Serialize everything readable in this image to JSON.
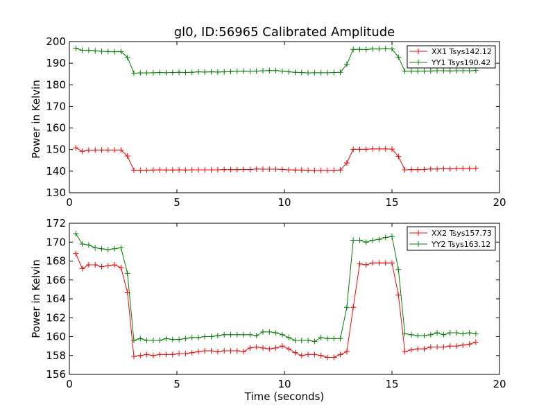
{
  "chart_data": [
    {
      "type": "line",
      "title": "gl0, ID:56965 Calibrated Amplitude",
      "xlabel": "",
      "ylabel": "Power in Kelvin",
      "xlim": [
        0,
        20
      ],
      "ylim": [
        130,
        200
      ],
      "xticks": [
        "0",
        "5",
        "10",
        "15",
        "20"
      ],
      "yticks": [
        "130",
        "140",
        "150",
        "160",
        "170",
        "180",
        "190",
        "200"
      ],
      "legend_position": "top-right",
      "x": [
        0.3,
        0.6,
        0.9,
        1.2,
        1.5,
        1.8,
        2.1,
        2.4,
        2.7,
        3.0,
        3.3,
        3.6,
        3.9,
        4.2,
        4.5,
        4.8,
        5.1,
        5.4,
        5.7,
        6.0,
        6.3,
        6.6,
        6.9,
        7.2,
        7.5,
        7.8,
        8.1,
        8.4,
        8.7,
        9.0,
        9.3,
        9.6,
        9.9,
        10.2,
        10.5,
        10.8,
        11.1,
        11.4,
        11.7,
        12.0,
        12.3,
        12.6,
        12.9,
        13.2,
        13.5,
        13.8,
        14.1,
        14.4,
        14.7,
        15.0,
        15.3,
        15.6,
        15.9,
        16.2,
        16.5,
        16.8,
        17.1,
        17.4,
        17.7,
        18.0,
        18.3,
        18.6,
        18.9
      ],
      "series": [
        {
          "name": "XX1 Tsys142.12",
          "color": "#ff0000",
          "values": [
            150.8,
            149.2,
            149.7,
            149.8,
            149.8,
            149.8,
            149.8,
            149.8,
            147.0,
            140.4,
            140.4,
            140.4,
            140.5,
            140.6,
            140.5,
            140.5,
            140.6,
            140.5,
            140.6,
            140.6,
            140.6,
            140.6,
            140.6,
            140.7,
            140.7,
            140.7,
            140.8,
            140.7,
            141.0,
            140.9,
            140.9,
            140.9,
            140.8,
            140.6,
            140.5,
            140.5,
            140.4,
            140.3,
            140.3,
            140.3,
            140.4,
            140.5,
            143.8,
            150.1,
            150.1,
            150.1,
            150.3,
            150.3,
            150.3,
            150.2,
            146.8,
            140.6,
            140.7,
            140.7,
            140.8,
            141.0,
            141.0,
            141.1,
            141.0,
            141.2,
            141.2,
            141.2,
            141.3
          ]
        },
        {
          "name": "YY1 Tsys190.42",
          "color": "#008000",
          "values": [
            196.9,
            196.0,
            196.0,
            195.7,
            195.5,
            195.4,
            195.3,
            195.4,
            192.7,
            185.4,
            185.5,
            185.5,
            185.6,
            185.7,
            185.6,
            185.7,
            185.8,
            185.7,
            185.8,
            186.0,
            185.9,
            186.0,
            185.9,
            186.0,
            186.1,
            186.2,
            186.3,
            186.2,
            186.3,
            186.5,
            186.6,
            186.6,
            186.3,
            186.0,
            185.8,
            185.7,
            185.5,
            185.6,
            185.6,
            185.6,
            185.7,
            185.8,
            189.5,
            196.4,
            196.4,
            196.3,
            196.6,
            196.6,
            196.7,
            196.6,
            192.8,
            186.3,
            186.3,
            186.3,
            186.3,
            186.4,
            186.5,
            186.5,
            186.4,
            186.5,
            186.5,
            186.5,
            186.6
          ]
        }
      ]
    },
    {
      "type": "line",
      "title": "",
      "xlabel": "Time (seconds)",
      "ylabel": "Power in Kelvin",
      "xlim": [
        0,
        20
      ],
      "ylim": [
        156,
        172
      ],
      "xticks": [
        "0",
        "5",
        "10",
        "15",
        "20"
      ],
      "yticks": [
        "156",
        "158",
        "160",
        "162",
        "164",
        "166",
        "168",
        "170",
        "172"
      ],
      "legend_position": "top-right",
      "x": [
        0.3,
        0.6,
        0.9,
        1.2,
        1.5,
        1.8,
        2.1,
        2.4,
        2.7,
        3.0,
        3.3,
        3.6,
        3.9,
        4.2,
        4.5,
        4.8,
        5.1,
        5.4,
        5.7,
        6.0,
        6.3,
        6.6,
        6.9,
        7.2,
        7.5,
        7.8,
        8.1,
        8.4,
        8.7,
        9.0,
        9.3,
        9.6,
        9.9,
        10.2,
        10.5,
        10.8,
        11.1,
        11.4,
        11.7,
        12.0,
        12.3,
        12.6,
        12.9,
        13.2,
        13.5,
        13.8,
        14.1,
        14.4,
        14.7,
        15.0,
        15.3,
        15.6,
        15.9,
        16.2,
        16.5,
        16.8,
        17.1,
        17.4,
        17.7,
        18.0,
        18.3,
        18.6,
        18.9
      ],
      "series": [
        {
          "name": "XX2 Tsys157.73",
          "color": "#ff0000",
          "values": [
            168.8,
            167.2,
            167.6,
            167.6,
            167.4,
            167.5,
            167.6,
            167.3,
            164.7,
            157.9,
            158.0,
            158.1,
            158.0,
            158.1,
            158.1,
            158.1,
            158.2,
            158.2,
            158.3,
            158.4,
            158.5,
            158.5,
            158.4,
            158.5,
            158.5,
            158.5,
            158.4,
            158.8,
            158.9,
            158.8,
            158.7,
            158.8,
            159.0,
            158.7,
            158.3,
            158.0,
            158.1,
            158.1,
            158.0,
            157.8,
            157.8,
            158.1,
            158.4,
            163.1,
            167.7,
            167.6,
            167.8,
            167.8,
            167.8,
            167.8,
            164.4,
            158.4,
            158.6,
            158.7,
            158.7,
            158.9,
            158.9,
            158.9,
            159.0,
            159.0,
            159.1,
            159.2,
            159.4
          ]
        },
        {
          "name": "YY2 Tsys163.12",
          "color": "#008000",
          "values": [
            170.9,
            169.8,
            169.7,
            169.4,
            169.3,
            169.2,
            169.3,
            169.4,
            166.7,
            159.6,
            159.8,
            159.6,
            159.6,
            159.6,
            159.8,
            159.7,
            159.7,
            159.8,
            159.9,
            159.9,
            160.0,
            160.0,
            160.1,
            160.2,
            160.2,
            160.2,
            160.2,
            160.2,
            160.1,
            160.5,
            160.5,
            160.4,
            160.2,
            159.9,
            159.6,
            159.6,
            159.6,
            159.5,
            159.9,
            159.8,
            159.8,
            159.8,
            163.1,
            170.2,
            170.2,
            170.0,
            170.2,
            170.3,
            170.5,
            170.6,
            167.1,
            160.3,
            160.2,
            160.1,
            160.1,
            160.2,
            160.4,
            160.2,
            160.4,
            160.4,
            160.3,
            160.4,
            160.3
          ]
        }
      ]
    }
  ]
}
